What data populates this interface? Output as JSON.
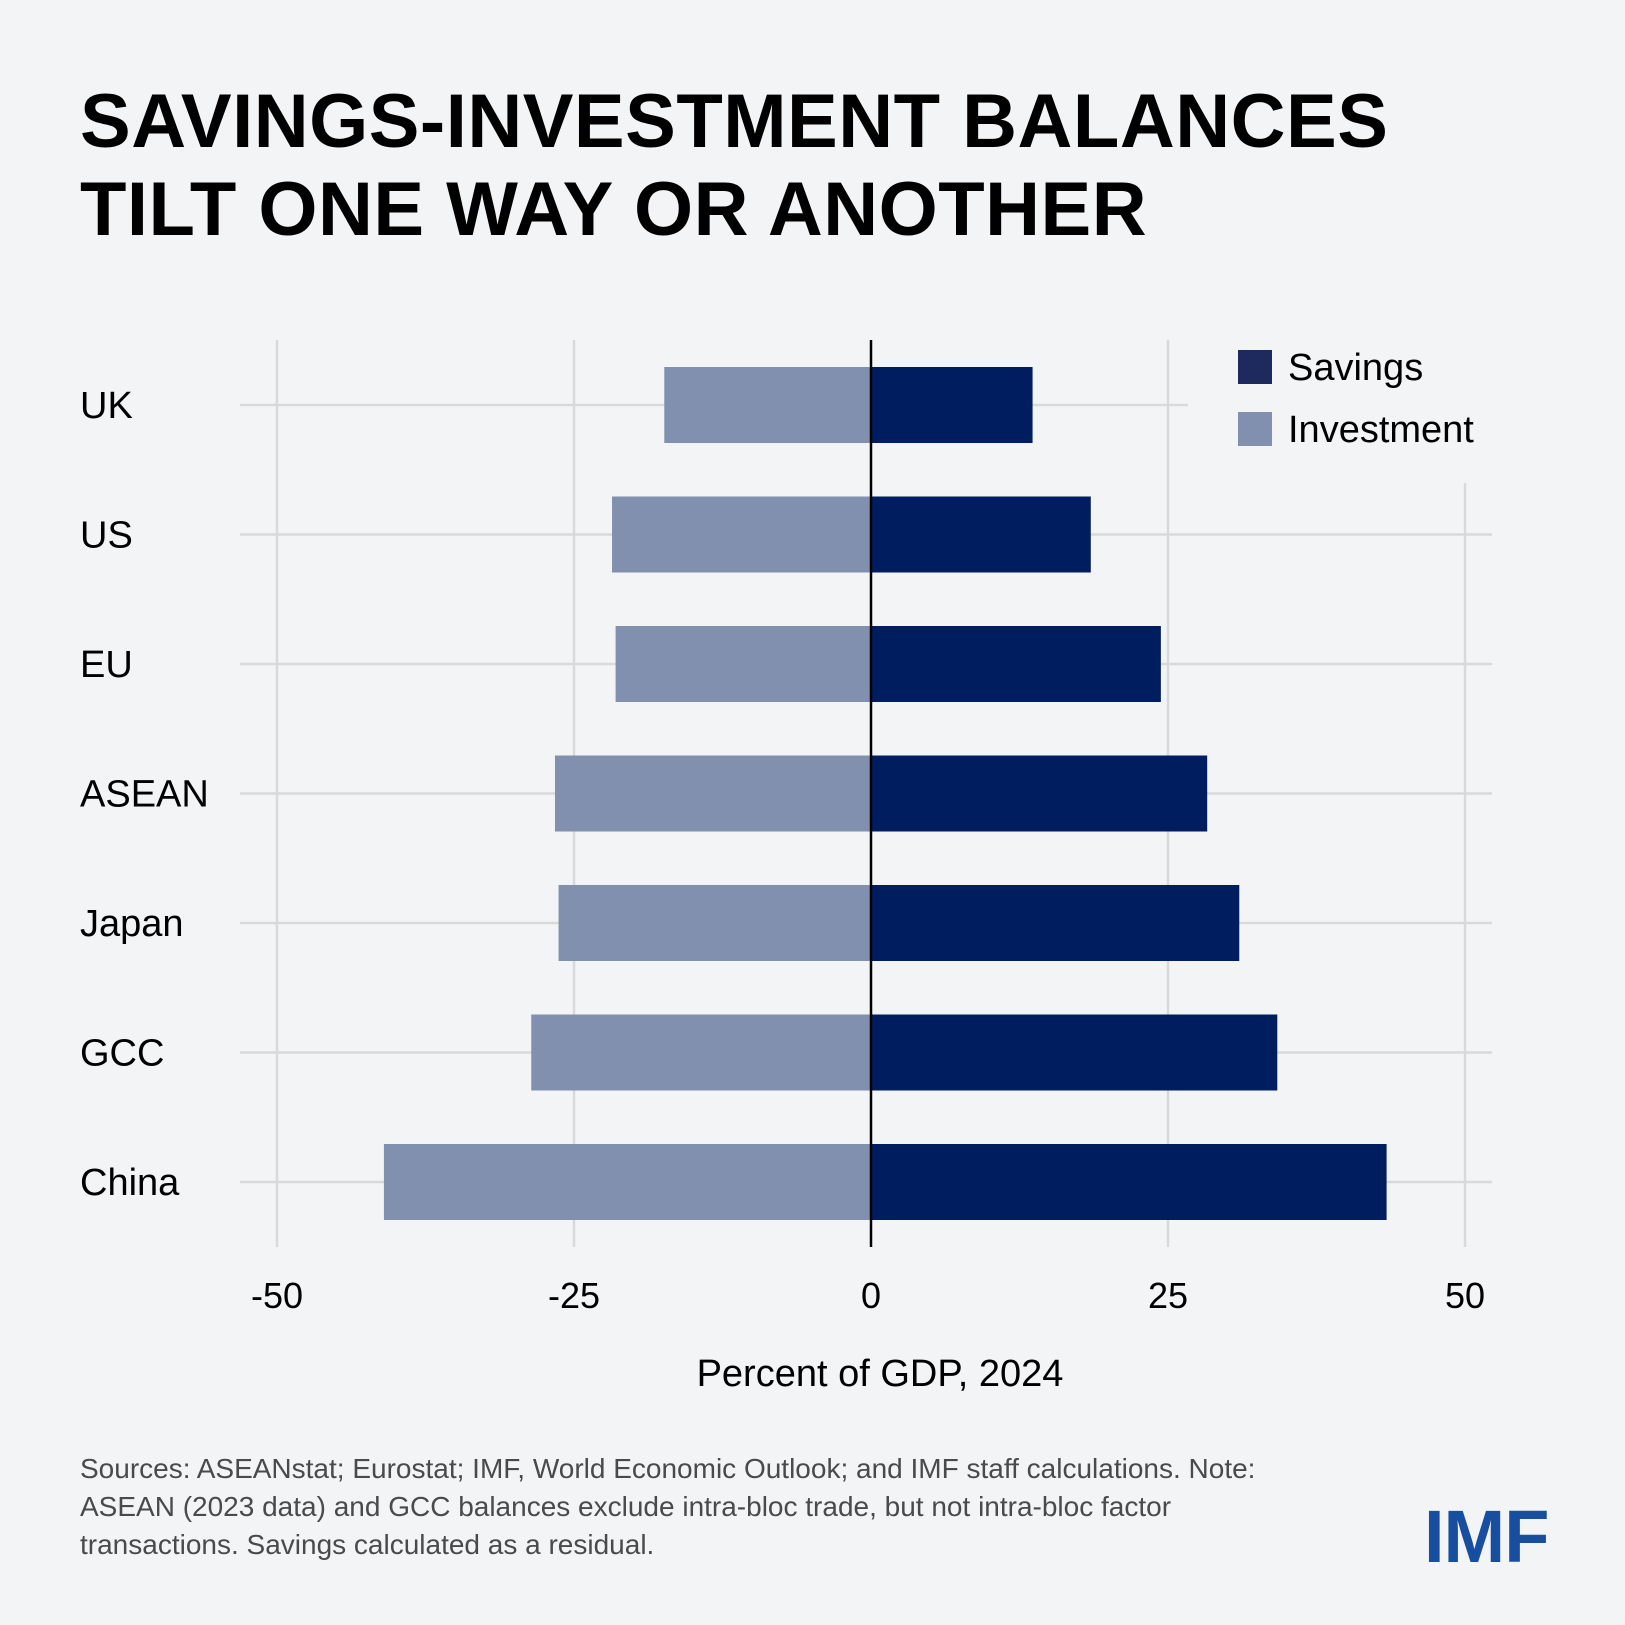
{
  "title_lines": [
    "SAVINGS-INVESTMENT BALANCES",
    "TILT ONE WAY OR ANOTHER"
  ],
  "sources": "Sources: ASEANstat; Eurostat; IMF, World Economic Outlook; and IMF staff calculations. Note: ASEAN (2023 data) and GCC balances exclude intra-bloc trade, but not intra-bloc factor transactions. Savings calculated as a residual.",
  "logo": "IMF",
  "colors": {
    "savings": "#001e5f",
    "investment": "#8290b0",
    "savings_legend": "#1e2a5e",
    "grid": "#d9d9d9",
    "zero_line": "#000000"
  },
  "chart_data": {
    "type": "bar",
    "orientation": "horizontal",
    "categories": [
      "UK",
      "US",
      "EU",
      "ASEAN",
      "Japan",
      "GCC",
      "China"
    ],
    "series": [
      {
        "name": "Savings",
        "values": [
          13.6,
          18.5,
          24.4,
          28.3,
          31.0,
          34.2,
          43.4
        ]
      },
      {
        "name": "Investment",
        "values": [
          -17.4,
          -21.8,
          -21.5,
          -26.6,
          -26.3,
          -28.6,
          -41.0
        ]
      }
    ],
    "xlabel": "Percent of GDP, 2024",
    "xlim": [
      -50,
      50
    ],
    "xticks": [
      -50,
      -25,
      0,
      25,
      50
    ],
    "xtick_labels": [
      "-50",
      "-25",
      "0",
      "25",
      "50"
    ],
    "grid": true,
    "legend": {
      "position": "top-right",
      "entries": [
        "Savings",
        "Investment"
      ]
    }
  }
}
